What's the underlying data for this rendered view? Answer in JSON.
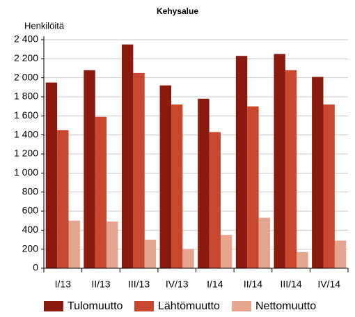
{
  "chart_data": {
    "type": "bar",
    "title": "Kehysalue",
    "y_label": "Henkilöitä",
    "categories": [
      "I/13",
      "II/13",
      "III/13",
      "IV/13",
      "I/14",
      "II/14",
      "III/14",
      "IV/14"
    ],
    "series": [
      {
        "name": "Tulomuutto",
        "color": "#8b1a0e",
        "values": [
          1950,
          2080,
          2350,
          1920,
          1780,
          2230,
          2250,
          2010
        ]
      },
      {
        "name": "Lähtömuutto",
        "color": "#c8472f",
        "values": [
          1450,
          1590,
          2050,
          1720,
          1430,
          1700,
          2080,
          1720
        ]
      },
      {
        "name": "Nettomuutto",
        "color": "#e6a58e",
        "values": [
          500,
          490,
          300,
          200,
          350,
          530,
          170,
          290
        ]
      }
    ],
    "ylim": [
      0,
      2400
    ],
    "yticks": [
      0,
      200,
      400,
      600,
      800,
      {
        "value": 1000,
        "label": "1 000"
      },
      {
        "value": 1200,
        "label": "1 200"
      },
      {
        "value": 1400,
        "label": "1 400"
      },
      {
        "value": 1600,
        "label": "1 600"
      },
      {
        "value": 1800,
        "label": "1 800"
      },
      {
        "value": 2000,
        "label": "2 000"
      },
      {
        "value": 2200,
        "label": "2 200"
      },
      {
        "value": 2400,
        "label": "2 400"
      }
    ],
    "grid": true
  }
}
